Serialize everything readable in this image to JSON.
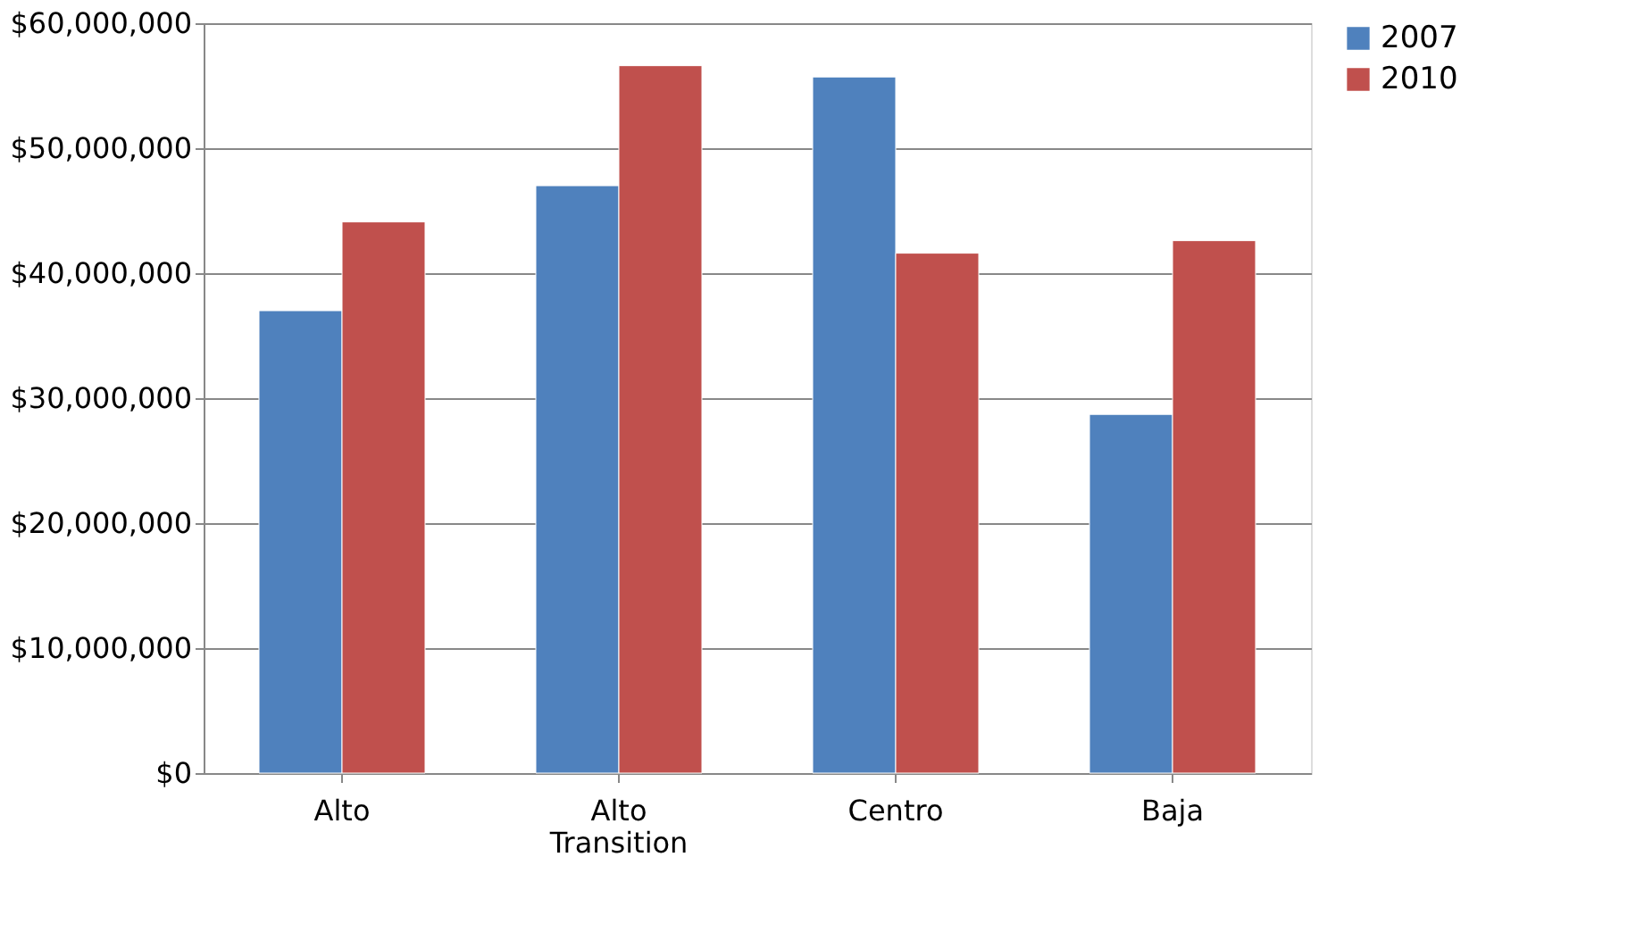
{
  "chart_data": {
    "type": "bar",
    "categories": [
      "Alto",
      "Alto Transition",
      "Centro",
      "Baja"
    ],
    "series": [
      {
        "name": "2007",
        "color": "#4f81bd",
        "values": [
          37000000,
          47000000,
          55700000,
          28700000
        ]
      },
      {
        "name": "2010",
        "color": "#c0504d",
        "values": [
          44100000,
          56600000,
          41600000,
          42600000
        ]
      }
    ],
    "ylim": [
      0,
      60000000
    ],
    "yticks": [
      {
        "value": 0,
        "label": "$0"
      },
      {
        "value": 10000000,
        "label": "$10,000,000"
      },
      {
        "value": 20000000,
        "label": "$20,000,000"
      },
      {
        "value": 30000000,
        "label": "$30,000,000"
      },
      {
        "value": 40000000,
        "label": "$40,000,000"
      },
      {
        "value": 50000000,
        "label": "$50,000,000"
      },
      {
        "value": 60000000,
        "label": "$60,000,000"
      }
    ],
    "grid": "y",
    "legend": "right"
  }
}
